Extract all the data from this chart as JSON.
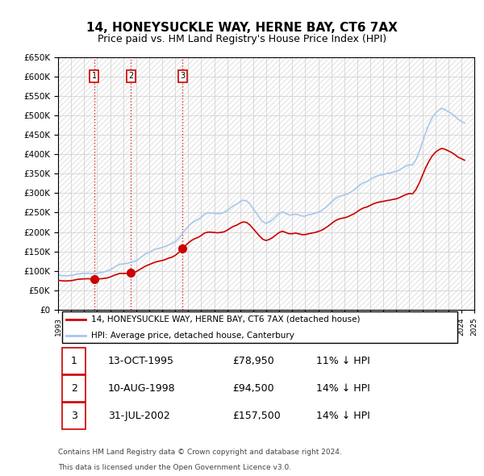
{
  "title": "14, HONEYSUCKLE WAY, HERNE BAY, CT6 7AX",
  "subtitle": "Price paid vs. HM Land Registry's House Price Index (HPI)",
  "legend_label_red": "14, HONEYSUCKLE WAY, HERNE BAY, CT6 7AX (detached house)",
  "legend_label_blue": "HPI: Average price, detached house, Canterbury",
  "footer_line1": "Contains HM Land Registry data © Crown copyright and database right 2024.",
  "footer_line2": "This data is licensed under the Open Government Licence v3.0.",
  "transactions": [
    {
      "num": 1,
      "date": "13-OCT-1995",
      "price": 78950,
      "pct": "11%",
      "dir": "↓"
    },
    {
      "num": 2,
      "date": "10-AUG-1998",
      "price": 94500,
      "pct": "14%",
      "dir": "↓"
    },
    {
      "num": 3,
      "date": "31-JUL-2002",
      "price": 157500,
      "pct": "14%",
      "dir": "↓"
    }
  ],
  "ylim": [
    0,
    650000
  ],
  "yticks": [
    0,
    50000,
    100000,
    150000,
    200000,
    250000,
    300000,
    350000,
    400000,
    450000,
    500000,
    550000,
    600000,
    650000
  ],
  "hpi_color": "#a8c8e8",
  "sale_color": "#cc0000",
  "vline_color": "#cc0000",
  "background_color": "#ffffff",
  "grid_color": "#cccccc",
  "hpi_data": {
    "dates": [
      1993.0,
      1993.25,
      1993.5,
      1993.75,
      1994.0,
      1994.25,
      1994.5,
      1994.75,
      1995.0,
      1995.25,
      1995.5,
      1995.75,
      1996.0,
      1996.25,
      1996.5,
      1996.75,
      1997.0,
      1997.25,
      1997.5,
      1997.75,
      1998.0,
      1998.25,
      1998.5,
      1998.75,
      1999.0,
      1999.25,
      1999.5,
      1999.75,
      2000.0,
      2000.25,
      2000.5,
      2000.75,
      2001.0,
      2001.25,
      2001.5,
      2001.75,
      2002.0,
      2002.25,
      2002.5,
      2002.75,
      2003.0,
      2003.25,
      2003.5,
      2003.75,
      2004.0,
      2004.25,
      2004.5,
      2004.75,
      2005.0,
      2005.25,
      2005.5,
      2005.75,
      2006.0,
      2006.25,
      2006.5,
      2006.75,
      2007.0,
      2007.25,
      2007.5,
      2007.75,
      2008.0,
      2008.25,
      2008.5,
      2008.75,
      2009.0,
      2009.25,
      2009.5,
      2009.75,
      2010.0,
      2010.25,
      2010.5,
      2010.75,
      2011.0,
      2011.25,
      2011.5,
      2011.75,
      2012.0,
      2012.25,
      2012.5,
      2012.75,
      2013.0,
      2013.25,
      2013.5,
      2013.75,
      2014.0,
      2014.25,
      2014.5,
      2014.75,
      2015.0,
      2015.25,
      2015.5,
      2015.75,
      2016.0,
      2016.25,
      2016.5,
      2016.75,
      2017.0,
      2017.25,
      2017.5,
      2017.75,
      2018.0,
      2018.25,
      2018.5,
      2018.75,
      2019.0,
      2019.25,
      2019.5,
      2019.75,
      2020.0,
      2020.25,
      2020.5,
      2020.75,
      2021.0,
      2021.25,
      2021.5,
      2021.75,
      2022.0,
      2022.25,
      2022.5,
      2022.75,
      2023.0,
      2023.25,
      2023.5,
      2023.75,
      2024.0,
      2024.25
    ],
    "values": [
      89000,
      88000,
      87000,
      87500,
      88000,
      90000,
      92000,
      93000,
      93500,
      94000,
      93500,
      93000,
      93500,
      95000,
      97000,
      99000,
      103000,
      108000,
      113000,
      117000,
      118000,
      119000,
      121000,
      123000,
      126000,
      132000,
      138000,
      144000,
      148000,
      152000,
      156000,
      158000,
      160000,
      163000,
      167000,
      170000,
      175000,
      183000,
      193000,
      204000,
      214000,
      222000,
      228000,
      232000,
      238000,
      246000,
      249000,
      249000,
      248000,
      247000,
      248000,
      250000,
      255000,
      262000,
      268000,
      272000,
      278000,
      282000,
      280000,
      272000,
      260000,
      248000,
      236000,
      226000,
      222000,
      226000,
      232000,
      240000,
      248000,
      252000,
      248000,
      244000,
      244000,
      246000,
      244000,
      241000,
      241000,
      244000,
      246000,
      248000,
      251000,
      255000,
      261000,
      268000,
      276000,
      284000,
      290000,
      293000,
      295000,
      298000,
      303000,
      308000,
      315000,
      322000,
      327000,
      330000,
      335000,
      340000,
      344000,
      346000,
      348000,
      350000,
      352000,
      354000,
      356000,
      360000,
      365000,
      370000,
      373000,
      372000,
      385000,
      405000,
      430000,
      455000,
      476000,
      493000,
      505000,
      513000,
      518000,
      515000,
      510000,
      505000,
      498000,
      490000,
      485000,
      480000
    ]
  },
  "sale_data": {
    "dates": [
      1995.78,
      1998.61,
      2002.58
    ],
    "values": [
      78950,
      94500,
      157500
    ],
    "labels": [
      "1",
      "2",
      "3"
    ]
  },
  "xmin": 1993,
  "xmax": 2025
}
